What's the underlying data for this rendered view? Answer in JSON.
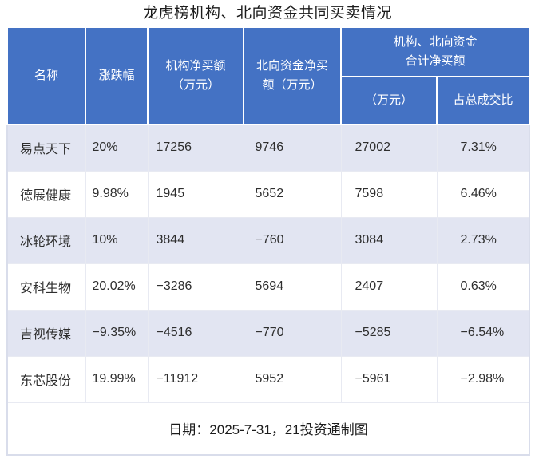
{
  "title": "龙虎榜机构、北向资金共同买卖情况",
  "colors": {
    "header_bg": "#4472c4",
    "band_row_bg": "#e2e5f2",
    "white_row_bg": "#ffffff",
    "header_text": "#ffffff",
    "body_text": "#2e2e2e",
    "outer_border": "#d9ddeb",
    "grid_line": "#e8eaf2"
  },
  "header": {
    "name": "名称",
    "change": "涨跌幅",
    "inst": "机构净买额\n（万元）",
    "north": "北向资金净买\n额（万元）",
    "group": "机构、北向资金\n合计净买额",
    "group_wan": "（万元）",
    "group_pct": "占总成交比"
  },
  "chart_data": {
    "type": "table",
    "title": "龙虎榜机构、北向资金共同买卖情况",
    "columns": [
      "名称",
      "涨跌幅",
      "机构净买额（万元）",
      "北向资金净买额（万元）",
      "机构、北向资金合计净买额（万元）",
      "机构、北向资金合计净买额占总成交比"
    ],
    "rows": [
      [
        "易点天下",
        "20%",
        "17256",
        "9746",
        "27002",
        "7.31%"
      ],
      [
        "德展健康",
        "9.98%",
        "1945",
        "5652",
        "7598",
        "6.46%"
      ],
      [
        "冰轮环境",
        "10%",
        "3844",
        "−760",
        "3084",
        "2.73%"
      ],
      [
        "安科生物",
        "20.02%",
        "−3286",
        "5694",
        "2407",
        "0.63%"
      ],
      [
        "吉视传媒",
        "−9.35%",
        "−4516",
        "−770",
        "−5285",
        "−6.54%"
      ],
      [
        "东芯股份",
        "19.99%",
        "−11912",
        "5952",
        "−5961",
        "−2.98%"
      ]
    ]
  },
  "footer": {
    "text": "日期：2025-7-31，21投资通制图"
  }
}
